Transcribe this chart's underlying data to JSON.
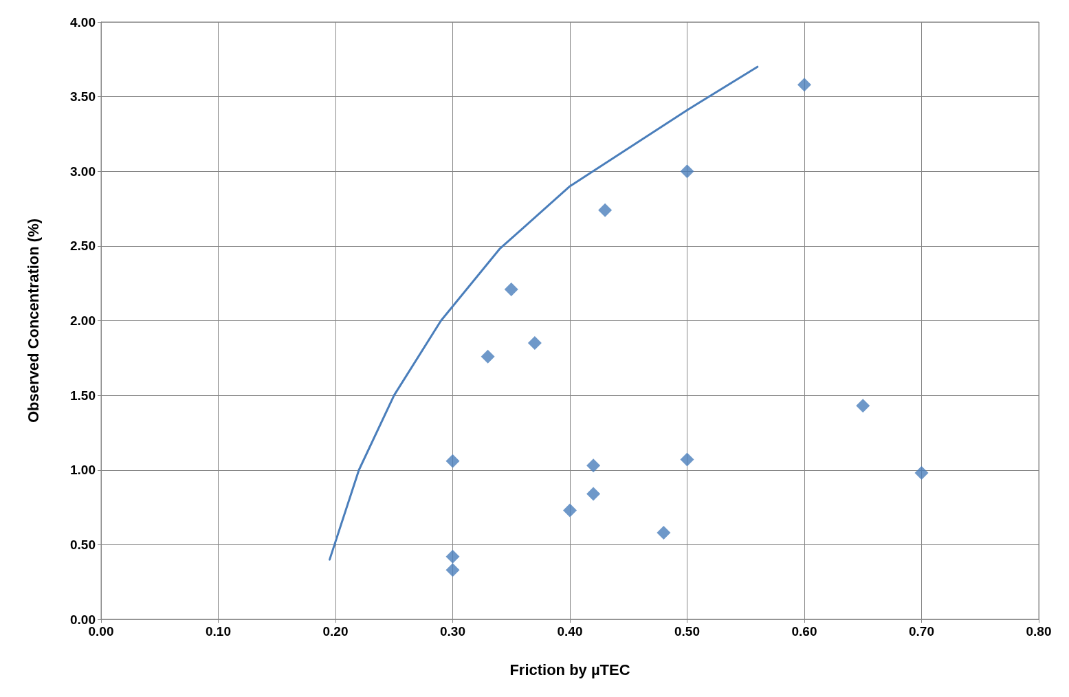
{
  "chart_data": {
    "type": "scatter",
    "xlabel": "Friction by µTEC",
    "ylabel": "Observed Concentration (%)",
    "series": [
      {
        "color": "#4a7ebb",
        "marker": "diamond",
        "x": [
          0.6,
          0.5,
          0.43,
          0.35,
          0.37,
          0.33,
          0.65,
          0.3,
          0.42,
          0.5,
          0.7,
          0.42,
          0.4,
          0.48,
          0.3,
          0.3
        ],
        "values": [
          3.58,
          3.0,
          2.74,
          2.21,
          1.85,
          1.76,
          1.43,
          1.06,
          1.03,
          1.07,
          0.98,
          0.84,
          0.73,
          0.58,
          0.42,
          0.33
        ]
      },
      {
        "type": "line",
        "color": "#4a7ebb",
        "marker": "none",
        "x": [
          0.195,
          0.22,
          0.25,
          0.29,
          0.34,
          0.4,
          0.5,
          0.56
        ],
        "values": [
          0.4,
          1.0,
          1.5,
          2.0,
          2.48,
          2.9,
          3.41,
          3.7
        ]
      }
    ],
    "xlim": [
      0,
      0.8
    ],
    "xticks": [
      {
        "value": 0,
        "label": "0.00"
      },
      {
        "value": 0.1,
        "label": "0.10"
      },
      {
        "value": 0.2,
        "label": "0.20"
      },
      {
        "value": 0.3,
        "label": "0.30"
      },
      {
        "value": 0.4,
        "label": "0.40"
      },
      {
        "value": 0.5,
        "label": "0.50"
      },
      {
        "value": 0.6,
        "label": "0.60"
      },
      {
        "value": 0.7,
        "label": "0.70"
      },
      {
        "value": 0.8,
        "label": "0.80"
      }
    ],
    "ylim": [
      0,
      4
    ],
    "yticks": [
      {
        "value": 0,
        "label": "0.00"
      },
      {
        "value": 0.5,
        "label": "0.50"
      },
      {
        "value": 1,
        "label": "1.00"
      },
      {
        "value": 1.5,
        "label": "1.50"
      },
      {
        "value": 2,
        "label": "2.00"
      },
      {
        "value": 2.5,
        "label": "2.50"
      },
      {
        "value": 3,
        "label": "3.00"
      },
      {
        "value": 3.5,
        "label": "3.50"
      },
      {
        "value": 4,
        "label": "4.00"
      }
    ],
    "grid": true
  }
}
